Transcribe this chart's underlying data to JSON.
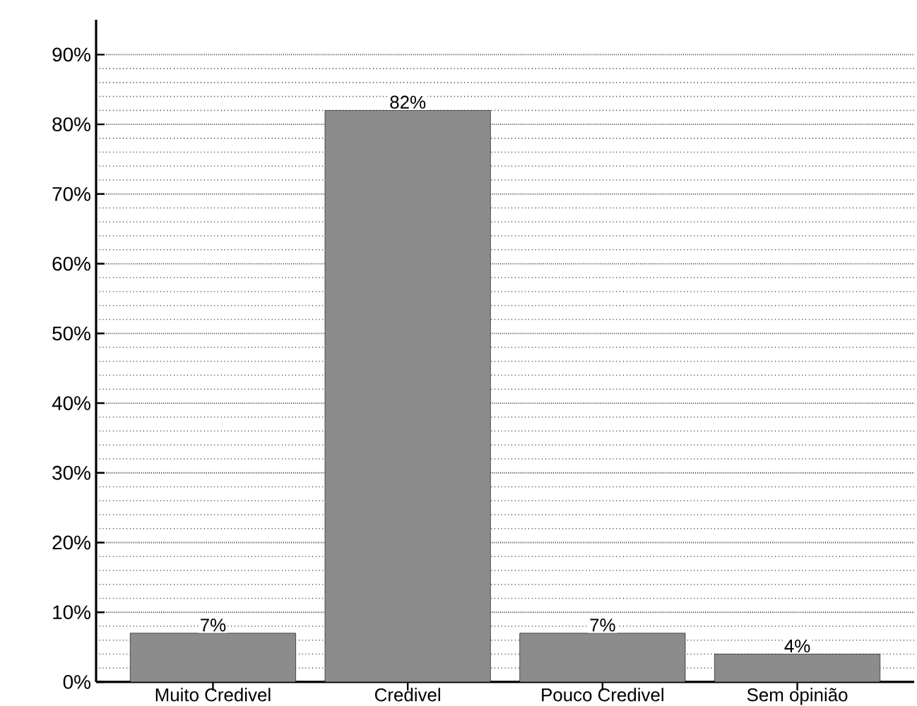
{
  "chart_data": {
    "type": "bar",
    "categories": [
      "Muito Credivel",
      "Credivel",
      "Pouco Credivel",
      "Sem opinião"
    ],
    "values": [
      7,
      82,
      7,
      4
    ],
    "value_labels": [
      "7%",
      "82%",
      "7%",
      "4%"
    ],
    "color": "#8c8c8c",
    "ylim": [
      0,
      95
    ],
    "yticks": [
      {
        "value": 0,
        "label": "0%"
      },
      {
        "value": 10,
        "label": "10%"
      },
      {
        "value": 20,
        "label": "20%"
      },
      {
        "value": 30,
        "label": "30%"
      },
      {
        "value": 40,
        "label": "40%"
      },
      {
        "value": 50,
        "label": "50%"
      },
      {
        "value": 60,
        "label": "60%"
      },
      {
        "value": 70,
        "label": "70%"
      },
      {
        "value": 80,
        "label": "80%"
      },
      {
        "value": 90,
        "label": "90%"
      }
    ],
    "grid": "y"
  }
}
